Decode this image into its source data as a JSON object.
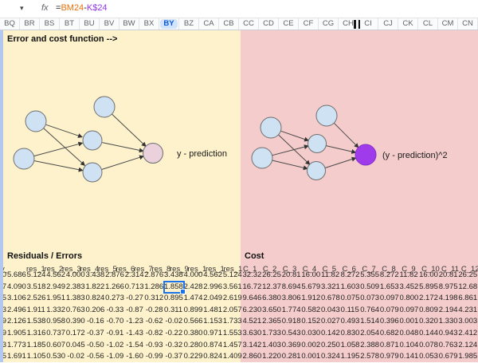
{
  "toolbar": {
    "name_box_caret": "▾",
    "fx_label": "fx",
    "formula": {
      "parts": [
        {
          "text": "=",
          "color": "#202124"
        },
        {
          "text": "BM24",
          "color": "#E8710A"
        },
        {
          "text": "-",
          "color": "#202124"
        },
        {
          "text": "K$24",
          "color": "#9334E6"
        }
      ]
    }
  },
  "column_headers": {
    "letters": [
      "BQ",
      "BR",
      "BS",
      "BT",
      "BU",
      "BV",
      "BW",
      "BX",
      "BY",
      "BZ",
      "CA",
      "CB",
      "CC",
      "CD",
      "CE",
      "CF",
      "CG",
      "CH",
      "CI",
      "CJ",
      "CK",
      "CL",
      "CM",
      "CN"
    ],
    "selected": "BY",
    "resize_indicator_between": [
      "CH",
      "CI"
    ]
  },
  "annotation": {
    "title": "Error and cost function -->"
  },
  "diagrams": {
    "left": {
      "label": "y - prediction"
    },
    "right": {
      "label": "(y - prediction)^2"
    }
  },
  "table": {
    "left_title": "Residuals / Errors",
    "right_title": "Cost",
    "first_col_header": "y_",
    "res_headers": [
      "res_1",
      "res_2",
      "res_3",
      "res_4",
      "res_5",
      "res_6",
      "res_7",
      "res_8",
      "res_9",
      "res_1",
      "res_1",
      "res_1"
    ],
    "cost_headers": [
      "C_1",
      "C_2",
      "C_3",
      "C_4",
      "C_5",
      "C_6",
      "C_7",
      "C_8",
      "C_9",
      "C_10",
      "C_11",
      "C_12"
    ],
    "rows": [
      {
        "y": "0",
        "res": [
          "5.686",
          "5.124",
          "4.562",
          "4.000",
          "3.438",
          "2.876",
          "2.314",
          "2.876",
          "3.438",
          "4.000",
          "4.562",
          "5.124"
        ],
        "cost": [
          "32.32",
          "26.25",
          "20.81",
          "16.00",
          "11.82",
          "8.272",
          "5.355",
          "8.272",
          "11.82",
          "16.00",
          "20.81",
          "26.25"
        ]
      },
      {
        "y": "7",
        "res": [
          "4.090",
          "3.518",
          "2.949",
          "2.383",
          "1.822",
          "1.266",
          "0.713",
          "1.286",
          "1.858",
          "2.428",
          "2.996",
          "3.561"
        ],
        "cost": [
          "16.72",
          "12.37",
          "8.694",
          "5.679",
          "3.321",
          "1.603",
          "0.509",
          "1.653",
          "3.452",
          "5.895",
          "8.975",
          "12.68"
        ]
      },
      {
        "y": "5",
        "res": [
          "3.106",
          "2.526",
          "1.951",
          "1.383",
          "0.824",
          "0.273",
          "-0.27",
          "0.312",
          "0.895",
          "1.474",
          "2.049",
          "2.619"
        ],
        "cost": [
          "9.646",
          "6.380",
          "3.806",
          "1.912",
          "0.678",
          "0.075",
          "0.073",
          "0.097",
          "0.800",
          "2.172",
          "4.198",
          "6.861"
        ]
      },
      {
        "y": "3",
        "res": [
          "2.496",
          "1.911",
          "1.332",
          "0.763",
          "0.206",
          "-0.33",
          "-0.87",
          "-0.28",
          "0.311",
          "0.899",
          "1.481",
          "2.057"
        ],
        "cost": [
          "6.230",
          "3.650",
          "1.774",
          "0.582",
          "0.043",
          "0.115",
          "0.764",
          "0.079",
          "0.097",
          "0.809",
          "2.194",
          "4.231"
        ]
      },
      {
        "y": "9",
        "res": [
          "2.126",
          "1.538",
          "0.958",
          "0.390",
          "-0.16",
          "-0.70",
          "-1.23",
          "-0.62",
          "-0.02",
          "0.566",
          "1.153",
          "1.733"
        ],
        "cost": [
          "4.521",
          "2.365",
          "0.918",
          "0.152",
          "0.027",
          "0.493",
          "1.514",
          "0.396",
          "0.001",
          "0.320",
          "1.330",
          "3.003"
        ]
      },
      {
        "y": "9",
        "res": [
          "1.905",
          "1.316",
          "0.737",
          "0.172",
          "-0.37",
          "-0.91",
          "-1.43",
          "-0.82",
          "-0.22",
          "0.380",
          "0.971",
          "1.553"
        ],
        "cost": [
          "3.630",
          "1.733",
          "0.543",
          "0.030",
          "0.142",
          "0.830",
          "2.054",
          "0.682",
          "0.048",
          "0.144",
          "0.943",
          "2.412"
        ]
      },
      {
        "y": "3",
        "res": [
          "1.773",
          "1.185",
          "0.607",
          "0.045",
          "-0.50",
          "-1.02",
          "-1.54",
          "-0.93",
          "-0.32",
          "0.280",
          "0.874",
          "1.457"
        ],
        "cost": [
          "3.142",
          "1.403",
          "0.369",
          "0.002",
          "0.250",
          "1.058",
          "2.388",
          "0.871",
          "0.104",
          "0.078",
          "0.763",
          "2.124"
        ]
      },
      {
        "y": "5",
        "res": [
          "1.691",
          "1.105",
          "0.530",
          "-0.02",
          "-0.56",
          "-1.09",
          "-1.60",
          "-0.99",
          "-0.37",
          "0.229",
          "0.824",
          "1.409"
        ],
        "cost": [
          "2.860",
          "1.220",
          "0.281",
          "0.001",
          "0.324",
          "1.195",
          "2.578",
          "0.979",
          "0.141",
          "0.053",
          "0.679",
          "1.985"
        ]
      }
    ]
  },
  "selection": {
    "column": "BY",
    "row_index": 1,
    "res_index": 8,
    "value": "1.858"
  },
  "colors": {
    "region_yellow": "#fdf2cc",
    "region_pink": "#f4cccc",
    "node_blue": "#cfe2f3",
    "node_pink": "#ead1dc",
    "node_purple": "#9F3BEA",
    "selection_blue": "#1a73e8",
    "selected_header_bg": "#d2e3fc",
    "formula_range_orange": "#E8710A",
    "formula_range_purple": "#9334E6"
  }
}
